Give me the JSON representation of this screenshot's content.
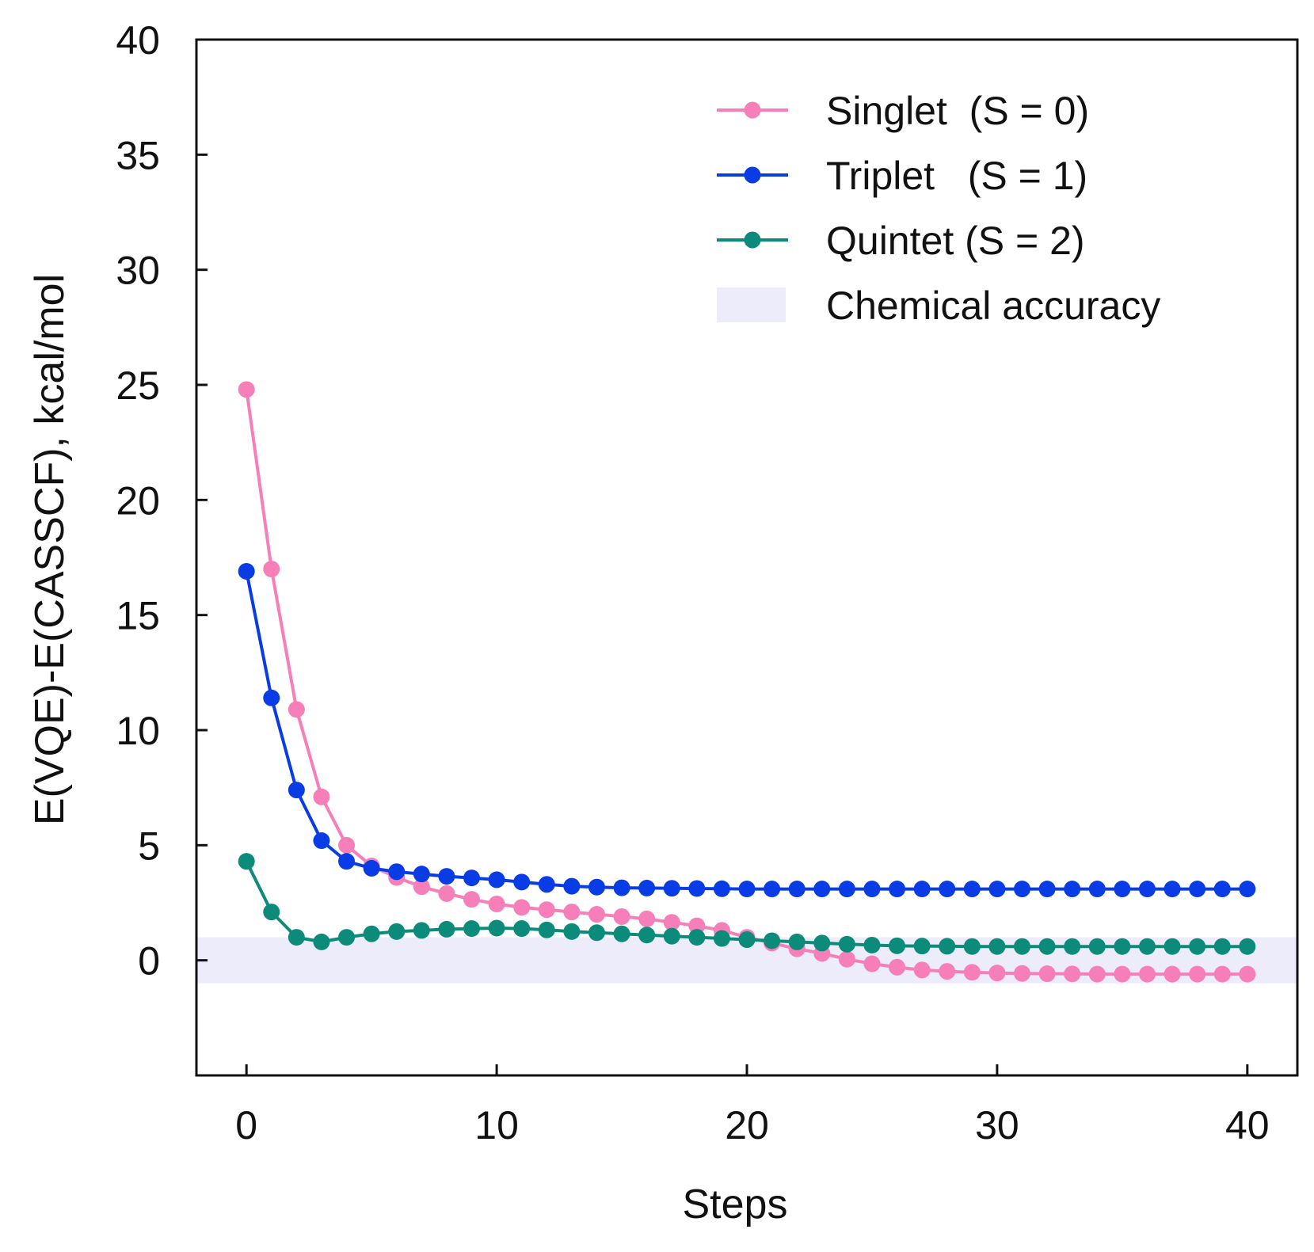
{
  "chart_data": {
    "type": "line",
    "xlabel": "Steps",
    "ylabel": "E(VQE)-E(CASSCF), kcal/mol",
    "xlim": [
      -2,
      42
    ],
    "ylim": [
      -5,
      40
    ],
    "xticks": [
      0,
      10,
      20,
      30,
      40
    ],
    "yticks": [
      0,
      5,
      10,
      15,
      20,
      25,
      30,
      35,
      40
    ],
    "legend_position": "top-right",
    "grid": false,
    "x": [
      0,
      1,
      2,
      3,
      4,
      5,
      6,
      7,
      8,
      9,
      10,
      11,
      12,
      13,
      14,
      15,
      16,
      17,
      18,
      19,
      20,
      21,
      22,
      23,
      24,
      25,
      26,
      27,
      28,
      29,
      30,
      31,
      32,
      33,
      34,
      35,
      36,
      37,
      38,
      39,
      40
    ],
    "band": {
      "name": "Chemical accuracy",
      "y_range": [
        -1,
        1
      ],
      "color": "#ececfb"
    },
    "series": [
      {
        "name": "Singlet  (S = 0)",
        "color": "#f77fb9",
        "values": [
          24.8,
          17.0,
          10.9,
          7.1,
          5.0,
          4.1,
          3.6,
          3.2,
          2.9,
          2.65,
          2.45,
          2.3,
          2.2,
          2.1,
          2.0,
          1.9,
          1.8,
          1.65,
          1.5,
          1.3,
          1.0,
          0.75,
          0.5,
          0.3,
          0.05,
          -0.15,
          -0.3,
          -0.42,
          -0.48,
          -0.52,
          -0.55,
          -0.57,
          -0.58,
          -0.59,
          -0.6,
          -0.6,
          -0.6,
          -0.6,
          -0.6,
          -0.6,
          -0.6
        ]
      },
      {
        "name": "Triplet   (S = 1)",
        "color": "#0a3ce6",
        "values": [
          16.9,
          11.4,
          7.4,
          5.2,
          4.3,
          4.0,
          3.85,
          3.75,
          3.65,
          3.58,
          3.5,
          3.4,
          3.3,
          3.22,
          3.18,
          3.15,
          3.14,
          3.13,
          3.12,
          3.11,
          3.1,
          3.1,
          3.1,
          3.1,
          3.1,
          3.1,
          3.1,
          3.1,
          3.1,
          3.1,
          3.1,
          3.1,
          3.1,
          3.1,
          3.1,
          3.1,
          3.1,
          3.1,
          3.1,
          3.1,
          3.1
        ]
      },
      {
        "name": "Quintet (S = 2)",
        "color": "#0c8b7b",
        "values": [
          4.3,
          2.1,
          1.0,
          0.8,
          1.0,
          1.15,
          1.25,
          1.3,
          1.35,
          1.38,
          1.4,
          1.38,
          1.32,
          1.25,
          1.2,
          1.15,
          1.1,
          1.05,
          1.0,
          0.95,
          0.9,
          0.85,
          0.8,
          0.75,
          0.7,
          0.66,
          0.63,
          0.62,
          0.61,
          0.6,
          0.6,
          0.6,
          0.6,
          0.6,
          0.6,
          0.6,
          0.6,
          0.6,
          0.6,
          0.6,
          0.6
        ]
      }
    ]
  }
}
